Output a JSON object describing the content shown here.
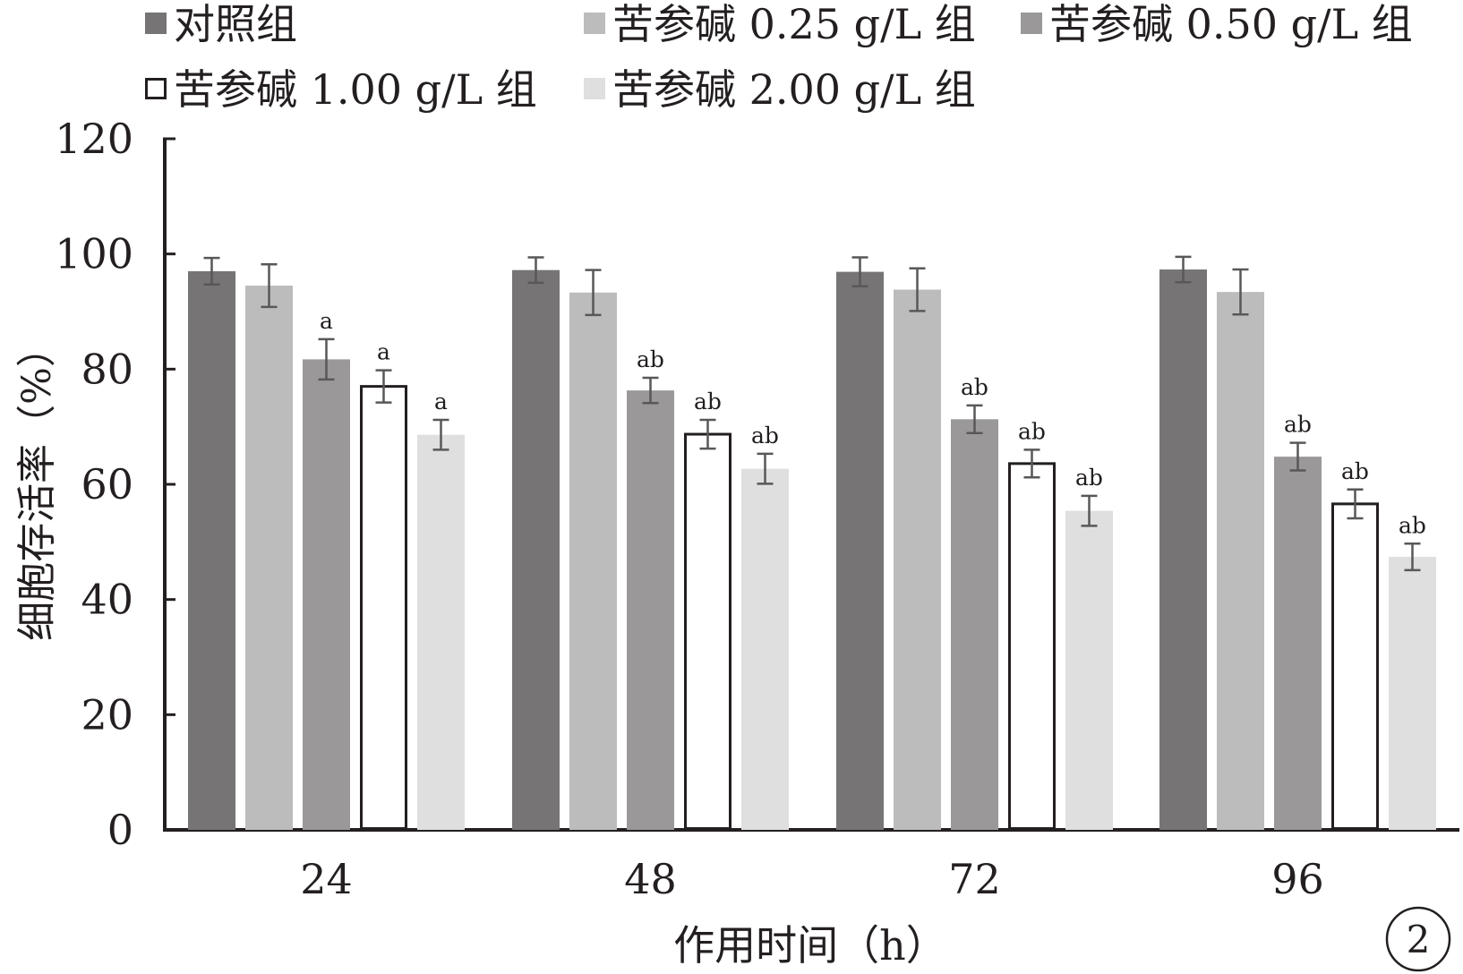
{
  "chart_data": {
    "type": "bar",
    "xlabel": "作用时间（h）",
    "ylabel": "细胞存活率（%）",
    "ylim": [
      0,
      120
    ],
    "yticks": [
      0,
      20,
      40,
      60,
      80,
      100,
      120
    ],
    "categories": [
      "24",
      "48",
      "72",
      "96"
    ],
    "legend_position": "top",
    "panel_label": "2",
    "series": [
      {
        "name": "对照组",
        "color": "#767475",
        "outline": false,
        "values": [
          97.0,
          97.2,
          96.9,
          97.3
        ],
        "errors": [
          2.3,
          2.2,
          2.5,
          2.2
        ],
        "annotations": [
          "",
          "",
          "",
          ""
        ]
      },
      {
        "name": "苦参碱 0.25 g/L 组",
        "color": "#bdbcbc",
        "outline": false,
        "values": [
          94.5,
          93.3,
          93.8,
          93.4
        ],
        "errors": [
          3.7,
          3.9,
          3.7,
          3.9
        ],
        "annotations": [
          "",
          "",
          "",
          ""
        ]
      },
      {
        "name": "苦参碱 0.50 g/L 组",
        "color": "#9a9899",
        "outline": false,
        "values": [
          81.7,
          76.3,
          71.3,
          64.8
        ],
        "errors": [
          3.5,
          2.2,
          2.4,
          2.4
        ],
        "annotations": [
          "a",
          "ab",
          "ab",
          "ab"
        ]
      },
      {
        "name": "苦参碱 1.00 g/L 组",
        "color": "#ffffff",
        "outline": true,
        "values": [
          77.0,
          68.7,
          63.6,
          56.6
        ],
        "errors": [
          2.8,
          2.5,
          2.4,
          2.5
        ],
        "annotations": [
          "a",
          "ab",
          "ab",
          "ab"
        ]
      },
      {
        "name": "苦参碱 2.00 g/L 组",
        "color": "#dfdfdf",
        "outline": false,
        "values": [
          68.6,
          62.7,
          55.4,
          47.4
        ],
        "errors": [
          2.6,
          2.6,
          2.6,
          2.3
        ],
        "annotations": [
          "a",
          "ab",
          "ab",
          "ab"
        ]
      }
    ]
  }
}
